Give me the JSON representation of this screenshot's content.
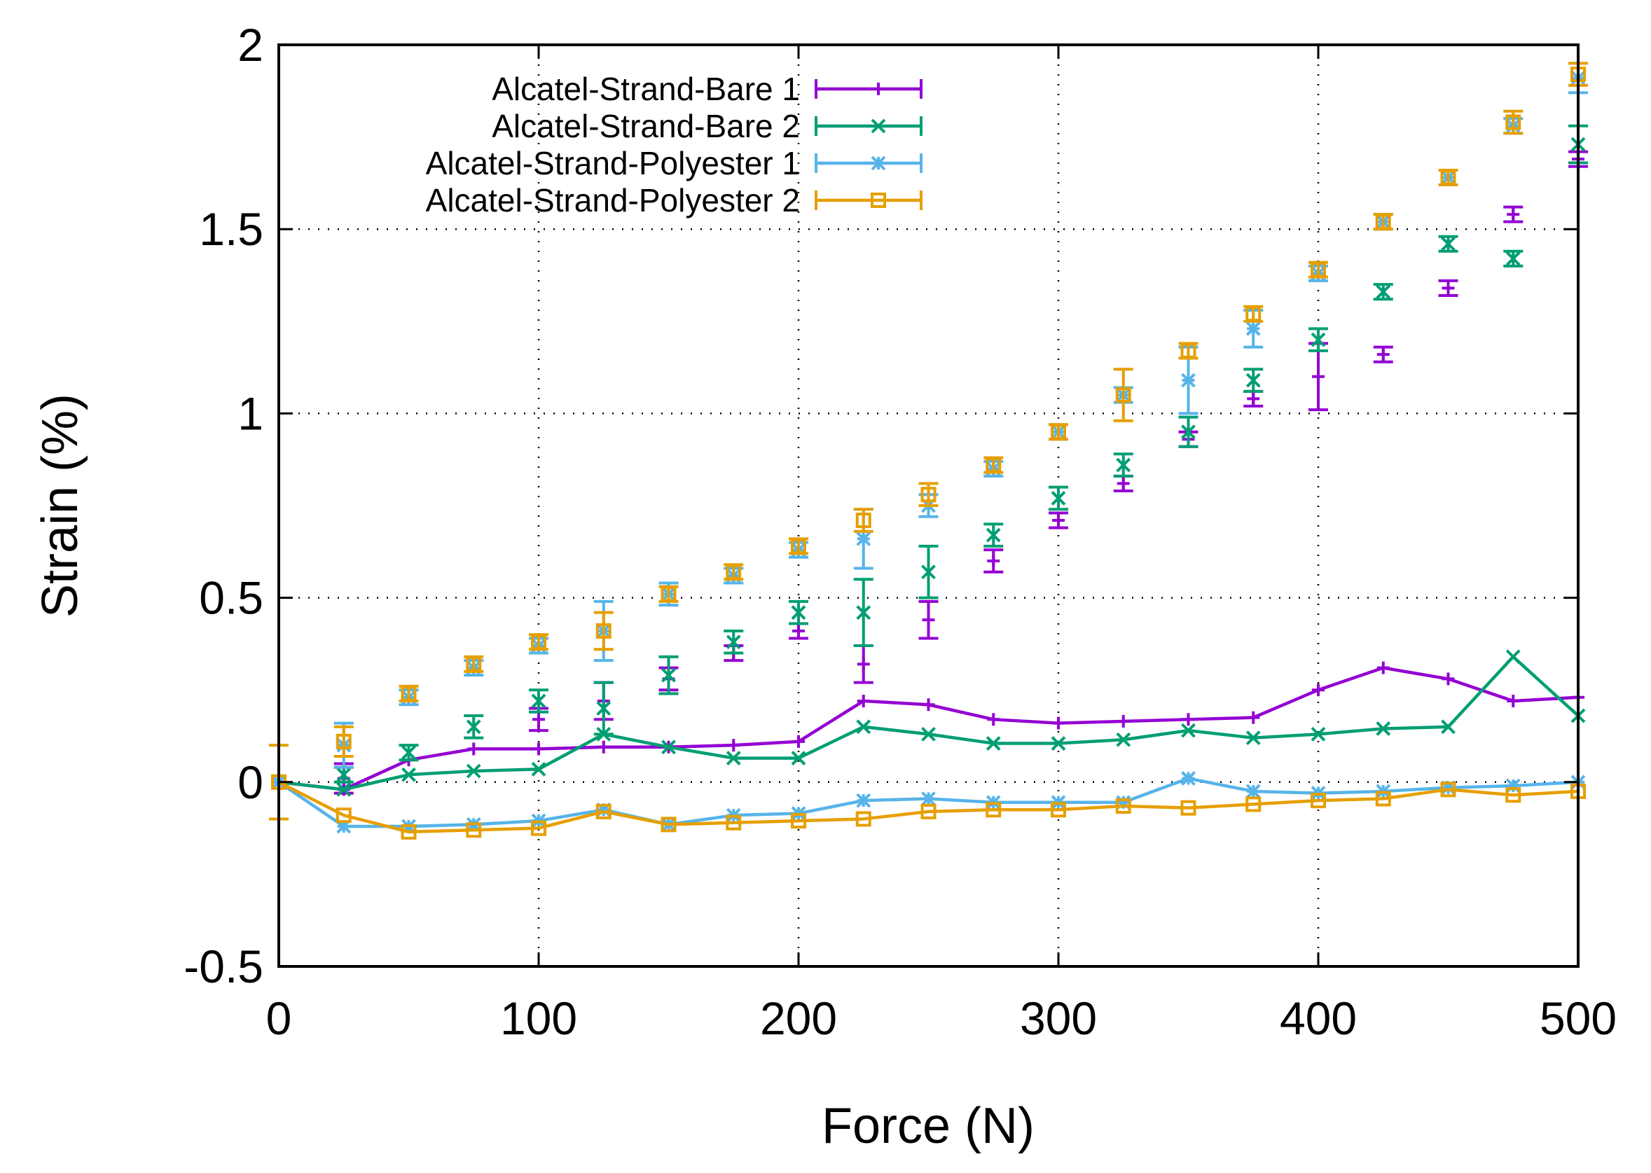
{
  "chart_data": {
    "type": "scatter",
    "title": "",
    "xlabel": "Force (N)",
    "ylabel": "Strain (%)",
    "xlim": [
      0,
      500
    ],
    "ylim": [
      -0.5,
      2
    ],
    "xticks": [
      0,
      100,
      200,
      300,
      400,
      500
    ],
    "yticks": [
      -0.5,
      0,
      0.5,
      1,
      1.5,
      2
    ],
    "xtick_labels": [
      "0",
      "100",
      "200",
      "300",
      "400",
      "500"
    ],
    "ytick_labels": [
      "-0.5",
      "0",
      "0.5",
      "1",
      "1.5",
      "2"
    ],
    "grid": true,
    "legend_position": "top-left",
    "x": [
      0,
      25,
      50,
      75,
      100,
      125,
      150,
      175,
      200,
      225,
      250,
      275,
      300,
      325,
      350,
      375,
      400,
      425,
      450,
      475,
      500
    ],
    "series": [
      {
        "name": "Alcatel-Strand-Bare 1",
        "color": "#9400d3",
        "marker": "plus",
        "loading_values": [
          0,
          0.01,
          null,
          null,
          0.17,
          0.22,
          0.28,
          0.35,
          0.41,
          0.32,
          0.44,
          0.6,
          0.71,
          0.81,
          0.93,
          1.04,
          1.1,
          1.16,
          1.34,
          1.54,
          1.69
        ],
        "loading_err": [
          0,
          0.04,
          null,
          null,
          0.03,
          0.05,
          0.03,
          0.02,
          0.02,
          0.05,
          0.05,
          0.03,
          0.02,
          0.02,
          0.02,
          0.02,
          0.09,
          0.02,
          0.02,
          0.02,
          0.02
        ],
        "unloading_values": [
          0,
          -0.02,
          0.06,
          0.09,
          0.09,
          0.095,
          0.095,
          0.1,
          0.11,
          0.22,
          0.21,
          0.17,
          0.16,
          0.165,
          0.17,
          0.175,
          0.25,
          0.31,
          0.28,
          0.22,
          0.23
        ]
      },
      {
        "name": "Alcatel-Strand-Bare 2",
        "color": "#009e73",
        "marker": "cross",
        "loading_values": [
          0,
          0.02,
          0.08,
          0.15,
          0.22,
          0.2,
          0.29,
          0.38,
          0.46,
          0.46,
          0.57,
          0.67,
          0.77,
          0.86,
          0.95,
          1.09,
          1.2,
          1.33,
          1.46,
          1.42,
          1.73
        ],
        "loading_err": [
          0,
          0.02,
          0.02,
          0.03,
          0.03,
          0.07,
          0.05,
          0.03,
          0.03,
          0.09,
          0.07,
          0.03,
          0.03,
          0.03,
          0.04,
          0.03,
          0.03,
          0.02,
          0.02,
          0.02,
          0.05
        ],
        "unloading_values": [
          0,
          -0.02,
          0.02,
          0.03,
          0.035,
          0.13,
          0.095,
          0.065,
          0.065,
          0.15,
          0.13,
          0.105,
          0.105,
          0.115,
          0.14,
          0.12,
          0.13,
          0.145,
          0.15,
          0.34,
          0.18
        ]
      },
      {
        "name": "Alcatel-Strand-Polyester 1",
        "color": "#56b4e9",
        "marker": "star",
        "loading_values": [
          0,
          0.1,
          0.23,
          0.31,
          0.37,
          0.41,
          0.51,
          0.56,
          0.63,
          0.66,
          0.75,
          0.85,
          0.95,
          1.05,
          1.09,
          1.23,
          1.38,
          1.52,
          1.64,
          1.78,
          1.91
        ],
        "loading_err": [
          0,
          0.06,
          0.02,
          0.02,
          0.02,
          0.08,
          0.03,
          0.02,
          0.02,
          0.08,
          0.03,
          0.02,
          0.02,
          0.02,
          0.09,
          0.05,
          0.02,
          0.02,
          0.02,
          0.02,
          0.04
        ],
        "unloading_values": [
          0,
          -0.12,
          -0.12,
          -0.115,
          -0.105,
          -0.075,
          -0.115,
          -0.09,
          -0.085,
          -0.05,
          -0.045,
          -0.055,
          -0.055,
          -0.055,
          0.01,
          -0.025,
          -0.03,
          -0.025,
          -0.015,
          -0.01,
          0
        ]
      },
      {
        "name": "Alcatel-Strand-Polyester 2",
        "color": "#e69f00",
        "marker": "square",
        "loading_values": [
          0,
          0.11,
          0.24,
          0.32,
          0.38,
          0.41,
          0.51,
          0.57,
          0.64,
          0.71,
          0.78,
          0.86,
          0.95,
          1.05,
          1.17,
          1.27,
          1.39,
          1.52,
          1.64,
          1.79,
          1.92
        ],
        "loading_err": [
          0,
          0.04,
          0.02,
          0.02,
          0.02,
          0.05,
          0.02,
          0.02,
          0.02,
          0.03,
          0.03,
          0.02,
          0.02,
          0.07,
          0.02,
          0.02,
          0.02,
          0.02,
          0.02,
          0.03,
          0.03
        ],
        "unloading_values": [
          0,
          -0.09,
          -0.135,
          -0.13,
          -0.125,
          -0.08,
          -0.115,
          -0.11,
          -0.105,
          -0.1,
          -0.08,
          -0.075,
          -0.075,
          -0.065,
          -0.07,
          -0.06,
          -0.05,
          -0.045,
          -0.02,
          -0.035,
          -0.025
        ],
        "zero_err": 0.1
      }
    ]
  }
}
